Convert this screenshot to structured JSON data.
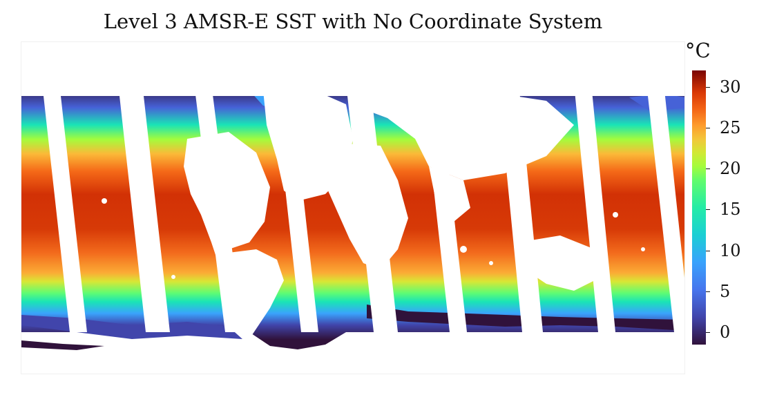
{
  "figure": {
    "title": "Level 3 AMSR-E SST with No Coordinate System"
  },
  "colorbar": {
    "unit": "°C",
    "min": -1.5,
    "max": 32,
    "ticks": [
      {
        "value": 0,
        "label": "0"
      },
      {
        "value": 5,
        "label": "5"
      },
      {
        "value": 10,
        "label": "10"
      },
      {
        "value": 15,
        "label": "15"
      },
      {
        "value": 20,
        "label": "20"
      },
      {
        "value": 25,
        "label": "25"
      },
      {
        "value": 30,
        "label": "30"
      }
    ],
    "colormap": "turbo"
  },
  "map": {
    "variable": "sea surface temperature",
    "coordinate_system": "none",
    "data": "swath"
  }
}
